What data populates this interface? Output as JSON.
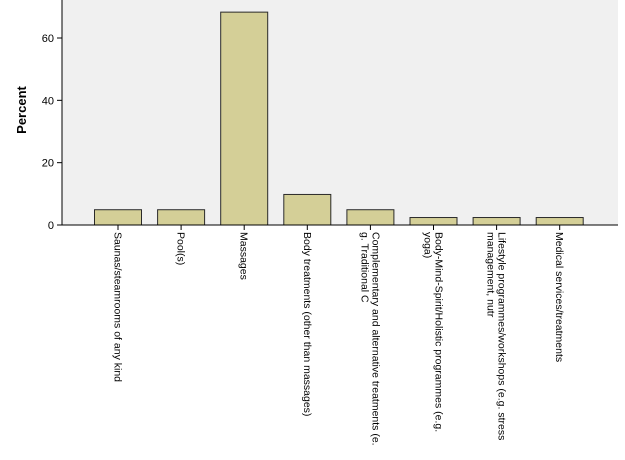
{
  "chart_data": {
    "type": "bar",
    "title": "",
    "xlabel": "",
    "ylabel": "Percent",
    "ylim": [
      0,
      70
    ],
    "yticks": [
      0,
      20,
      40,
      60
    ],
    "grid": false,
    "categories": [
      [
        "Saunas/steamrooms of any kind"
      ],
      [
        "Pool(s)"
      ],
      [
        "Massages"
      ],
      [
        "Body treatments (other than massages)"
      ],
      [
        "Complementary and alternative treatments (e.",
        "g. Traditional C"
      ],
      [
        "Body-Mind-Spirit/Holistic programmes (e.g.",
        "yoga)"
      ],
      [
        "Lifestyle programmes/workshops (e.g. stress",
        "management, nutr"
      ],
      [
        "Medical services/treatments"
      ]
    ],
    "values": [
      4.9,
      4.9,
      68.3,
      9.8,
      4.9,
      2.4,
      2.4,
      2.4
    ],
    "colors": {
      "bar_fill": "#d4cf97",
      "bar_stroke": "#2a2a2a",
      "plot_bg": "#f0f0f0",
      "axis": "#000000"
    }
  }
}
